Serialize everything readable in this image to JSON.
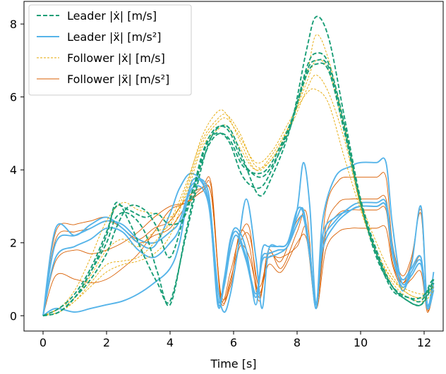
{
  "chart_data": {
    "type": "line",
    "xlabel": "Time [s]",
    "ylabel": "",
    "xlim": [
      -0.6,
      12.6
    ],
    "ylim": [
      -0.42,
      8.62
    ],
    "xticks": [
      0,
      2,
      4,
      6,
      8,
      10,
      12
    ],
    "yticks": [
      0,
      2,
      4,
      6,
      8
    ],
    "grid": false,
    "legend_position": "top-left",
    "legend": [
      {
        "label": "Leader |ẋ| [m/s]",
        "color": "#1a9e77",
        "style": "dashed",
        "width": 1.9
      },
      {
        "label": "Leader |ẍ| [m/s²]",
        "color": "#56b4e9",
        "style": "solid",
        "width": 1.9
      },
      {
        "label": "Follower |ẋ| [m/s]",
        "color": "#e6a700",
        "style": "dashed-thin",
        "width": 0.9
      },
      {
        "label": "Follower |ẍ| [m/s²]",
        "color": "#d95f02",
        "style": "solid-thin",
        "width": 0.9
      }
    ],
    "series": [
      {
        "group": "leader_vel",
        "x": [
          0,
          0.5,
          1,
          1.5,
          2,
          2.3,
          2.7,
          3.2,
          3.6,
          4,
          4.5,
          5,
          5.3,
          5.6,
          5.9,
          6.3,
          6.8,
          7.2,
          7.8,
          8.3,
          8.6,
          9,
          9.5,
          10,
          10.5,
          11,
          11.5,
          11.9,
          12.2,
          12.3
        ],
        "y": [
          0,
          0.1,
          0.5,
          1.2,
          2.2,
          3.1,
          2.6,
          1.6,
          0.9,
          0.4,
          2.2,
          4.1,
          4.9,
          5.2,
          5.1,
          4.3,
          3.3,
          3.8,
          5.2,
          7.3,
          8.2,
          7.6,
          5.4,
          3.2,
          1.8,
          0.8,
          0.4,
          0.3,
          0.8,
          1.0
        ]
      },
      {
        "group": "leader_vel",
        "x": [
          0,
          0.5,
          1,
          1.5,
          2,
          2.3,
          2.7,
          3.2,
          3.6,
          4,
          4.5,
          5,
          5.3,
          5.6,
          5.9,
          6.3,
          6.8,
          7.2,
          7.8,
          8.3,
          8.6,
          9,
          9.5,
          10,
          10.5,
          11,
          11.5,
          11.9,
          12.2,
          12.3
        ],
        "y": [
          0,
          0.2,
          0.6,
          1.3,
          2.3,
          3.0,
          2.9,
          2.7,
          2.8,
          2.5,
          2.8,
          4.4,
          5.0,
          5.2,
          5.0,
          4.2,
          3.8,
          4.1,
          5.2,
          6.8,
          7.2,
          6.9,
          5.2,
          3.1,
          1.7,
          0.7,
          0.5,
          0.4,
          0.9,
          1.0
        ]
      },
      {
        "group": "leader_vel",
        "x": [
          0,
          0.5,
          1,
          1.5,
          2,
          2.3,
          2.7,
          3.2,
          3.6,
          4,
          4.5,
          5,
          5.3,
          5.6,
          5.9,
          6.3,
          6.8,
          7.2,
          7.8,
          8.3,
          8.6,
          9,
          9.5,
          10,
          10.5,
          11,
          11.5,
          11.9,
          12.2,
          12.3
        ],
        "y": [
          0,
          0.1,
          0.5,
          1.0,
          1.7,
          2.4,
          3.0,
          2.9,
          2.4,
          1.6,
          2.9,
          4.2,
          4.8,
          5.0,
          4.8,
          4.1,
          3.9,
          4.2,
          5.3,
          6.6,
          6.9,
          6.7,
          5.0,
          3.1,
          1.6,
          0.8,
          0.5,
          0.5,
          0.8,
          1.0
        ]
      },
      {
        "group": "leader_vel",
        "x": [
          0,
          0.5,
          1,
          1.5,
          2,
          2.3,
          2.7,
          3.2,
          3.6,
          4,
          4.5,
          5,
          5.3,
          5.6,
          5.9,
          6.3,
          6.8,
          7.2,
          7.8,
          8.3,
          8.6,
          9,
          9.5,
          10,
          10.5,
          11,
          11.5,
          11.9,
          12.2,
          12.3
        ],
        "y": [
          0,
          0.1,
          0.5,
          1.2,
          2.0,
          2.7,
          2.8,
          2.3,
          1.2,
          0.3,
          2.3,
          4.3,
          4.9,
          5.0,
          4.7,
          3.8,
          3.5,
          4.0,
          5.3,
          6.7,
          7.0,
          6.8,
          5.1,
          3.1,
          1.7,
          0.8,
          0.4,
          0.3,
          0.7,
          0.9
        ]
      },
      {
        "group": "leader_acc",
        "x": [
          0,
          0.4,
          1,
          1.5,
          2,
          2.5,
          3,
          3.5,
          4,
          4.3,
          4.7,
          5.2,
          5.5,
          5.7,
          5.9,
          6.1,
          6.4,
          6.7,
          6.9,
          7.1,
          7.4,
          7.7,
          8,
          8.2,
          8.4,
          8.6,
          8.8,
          9.2,
          9.7,
          10,
          10.5,
          10.8,
          11,
          11.3,
          11.6,
          11.9,
          12.1,
          12.3
        ],
        "y": [
          0,
          0.2,
          0.1,
          0.2,
          0.3,
          0.4,
          0.6,
          0.9,
          1.3,
          2.0,
          3.7,
          3.2,
          0.8,
          0.1,
          0.6,
          1.6,
          3.2,
          1.6,
          0.2,
          1.8,
          1.9,
          2.0,
          2.9,
          4.2,
          3.0,
          0.3,
          2.6,
          3.8,
          4.1,
          4.2,
          4.2,
          4.2,
          2.5,
          0.9,
          1.4,
          3.0,
          0.3,
          1.2
        ]
      },
      {
        "group": "leader_acc",
        "x": [
          0,
          0.4,
          1,
          1.5,
          2,
          2.5,
          3,
          3.5,
          4,
          4.3,
          4.7,
          5.2,
          5.5,
          5.7,
          5.9,
          6.1,
          6.4,
          6.7,
          6.9,
          7.1,
          7.4,
          7.7,
          8,
          8.2,
          8.4,
          8.6,
          8.8,
          9.2,
          9.7,
          10,
          10.5,
          10.8,
          11,
          11.3,
          11.6,
          11.9,
          12.1,
          12.3
        ],
        "y": [
          0,
          2.4,
          2.2,
          2.5,
          2.7,
          2.4,
          2.0,
          1.9,
          2.8,
          3.5,
          3.9,
          3.2,
          0.3,
          1.0,
          2.1,
          2.4,
          1.8,
          0.3,
          1.8,
          1.9,
          1.9,
          2.0,
          2.9,
          2.8,
          1.8,
          0.2,
          2.2,
          2.7,
          2.9,
          3.0,
          3.0,
          3.0,
          1.8,
          1.0,
          1.3,
          1.6,
          0.2,
          0.9
        ]
      },
      {
        "group": "leader_acc",
        "x": [
          0,
          0.4,
          1,
          1.5,
          2,
          2.5,
          3,
          3.5,
          4,
          4.3,
          4.7,
          5.2,
          5.5,
          5.7,
          5.9,
          6.1,
          6.4,
          6.7,
          6.9,
          7.1,
          7.4,
          7.7,
          8,
          8.2,
          8.4,
          8.6,
          8.8,
          9.2,
          9.7,
          10,
          10.5,
          10.8,
          11,
          11.3,
          11.6,
          11.9,
          12.1,
          12.3
        ],
        "y": [
          0,
          2.0,
          2.2,
          2.4,
          2.6,
          2.5,
          2.1,
          2.0,
          2.3,
          2.6,
          3.6,
          3.4,
          0.5,
          0.9,
          2.0,
          2.3,
          1.6,
          0.6,
          1.6,
          1.7,
          1.8,
          1.9,
          2.7,
          2.9,
          1.7,
          0.3,
          2.0,
          2.6,
          3.0,
          3.1,
          3.1,
          3.1,
          1.9,
          0.7,
          1.2,
          1.5,
          0.3,
          0.8
        ]
      },
      {
        "group": "leader_acc",
        "x": [
          0,
          0.4,
          1,
          1.5,
          2,
          2.5,
          3,
          3.5,
          4,
          4.3,
          4.7,
          5.2,
          5.5,
          5.7,
          5.9,
          6.1,
          6.4,
          6.7,
          6.9,
          7.1,
          7.4,
          7.7,
          8,
          8.2,
          8.4,
          8.6,
          8.8,
          9.2,
          9.7,
          10,
          10.5,
          10.8,
          11,
          11.3,
          11.6,
          11.9,
          12.1,
          12.3
        ],
        "y": [
          0,
          1.6,
          1.9,
          2.1,
          2.4,
          2.3,
          1.8,
          1.6,
          2.0,
          2.4,
          3.5,
          3.1,
          0.4,
          0.8,
          1.8,
          2.2,
          1.5,
          0.5,
          1.5,
          1.6,
          1.7,
          1.9,
          2.5,
          2.7,
          1.6,
          0.2,
          1.8,
          2.5,
          2.9,
          3.0,
          3.0,
          3.0,
          1.7,
          0.8,
          1.1,
          1.4,
          0.2,
          0.7
        ]
      },
      {
        "group": "follower_vel",
        "x": [
          0,
          0.5,
          1,
          1.5,
          2,
          2.5,
          3,
          3.5,
          4,
          4.5,
          5,
          5.5,
          5.8,
          6.2,
          6.7,
          7.2,
          7.8,
          8.3,
          8.6,
          9,
          9.5,
          10,
          10.5,
          11,
          11.5,
          12,
          12.3
        ],
        "y": [
          0,
          0.1,
          0.4,
          0.9,
          1.4,
          1.5,
          1.6,
          2.0,
          2.6,
          3.6,
          4.8,
          5.4,
          5.5,
          5.0,
          4.1,
          4.3,
          5.3,
          6.6,
          7.7,
          7.0,
          5.2,
          3.2,
          2.0,
          1.1,
          0.6,
          0.5,
          0.8
        ]
      },
      {
        "group": "follower_vel",
        "x": [
          0,
          0.5,
          1,
          1.5,
          2,
          2.5,
          3,
          3.5,
          4,
          4.5,
          5,
          5.5,
          5.8,
          6.2,
          6.7,
          7.2,
          7.8,
          8.3,
          8.6,
          9,
          9.5,
          10,
          10.5,
          11,
          11.5,
          12,
          12.3
        ],
        "y": [
          0,
          0.2,
          0.5,
          1.1,
          1.8,
          2.1,
          1.9,
          2.3,
          2.5,
          3.5,
          4.9,
          5.6,
          5.5,
          4.8,
          4.0,
          4.3,
          5.2,
          6.2,
          6.6,
          6.1,
          4.8,
          3.0,
          1.8,
          1.0,
          0.7,
          0.6,
          0.8
        ]
      },
      {
        "group": "follower_vel",
        "x": [
          0,
          0.5,
          1,
          1.5,
          2,
          2.5,
          3,
          3.5,
          4,
          4.5,
          5,
          5.5,
          5.8,
          6.2,
          6.7,
          7.2,
          7.8,
          8.3,
          8.6,
          9,
          9.5,
          10,
          10.5,
          11,
          11.5,
          12,
          12.3
        ],
        "y": [
          0,
          0.1,
          0.4,
          0.8,
          1.2,
          1.4,
          1.5,
          1.7,
          2.2,
          3.4,
          4.7,
          5.3,
          5.4,
          4.9,
          4.2,
          4.5,
          5.4,
          6.1,
          6.2,
          5.8,
          4.3,
          2.9,
          1.7,
          1.0,
          0.6,
          0.5,
          0.9
        ]
      },
      {
        "group": "follower_vel",
        "x": [
          0,
          0.5,
          1,
          1.5,
          2,
          2.5,
          3,
          3.5,
          4,
          4.5,
          5,
          5.5,
          5.8,
          6.2,
          6.7,
          7.2,
          7.8,
          8.3,
          8.6,
          9,
          9.5,
          10,
          10.5,
          11,
          11.5,
          12,
          12.3
        ],
        "y": [
          0,
          0.2,
          0.7,
          1.6,
          2.6,
          3.1,
          2.9,
          2.8,
          2.7,
          3.3,
          4.6,
          5.1,
          5.2,
          4.6,
          4.0,
          4.4,
          5.3,
          6.4,
          7.0,
          6.7,
          5.0,
          3.0,
          1.7,
          0.9,
          0.5,
          0.4,
          0.7
        ]
      },
      {
        "group": "follower_acc",
        "x": [
          0,
          0.4,
          1,
          1.5,
          2,
          2.5,
          3,
          3.5,
          4,
          4.5,
          5,
          5.3,
          5.6,
          5.9,
          6.2,
          6.5,
          6.8,
          7.1,
          7.5,
          8,
          8.3,
          8.6,
          8.9,
          9.3,
          9.7,
          10,
          10.5,
          10.8,
          11,
          11.3,
          11.6,
          11.9,
          12.1,
          12.3
        ],
        "y": [
          0,
          1.1,
          1.0,
          0.9,
          1.0,
          1.3,
          1.7,
          2.3,
          2.9,
          3.1,
          3.5,
          3.6,
          0.5,
          1.2,
          2.2,
          2.4,
          0.5,
          1.8,
          1.3,
          2.3,
          2.8,
          0.3,
          2.4,
          3.1,
          3.2,
          3.2,
          3.2,
          3.2,
          1.8,
          0.9,
          1.5,
          2.9,
          0.2,
          0.9
        ]
      },
      {
        "group": "follower_acc",
        "x": [
          0,
          0.4,
          1,
          1.5,
          2,
          2.5,
          3,
          3.5,
          4,
          4.5,
          5,
          5.3,
          5.6,
          5.9,
          6.2,
          6.5,
          6.8,
          7.1,
          7.5,
          8,
          8.3,
          8.6,
          8.9,
          9.3,
          9.7,
          10,
          10.5,
          10.8,
          11,
          11.3,
          11.6,
          11.9,
          12.1,
          12.3
        ],
        "y": [
          0,
          1.5,
          1.8,
          1.7,
          1.8,
          2.0,
          2.3,
          2.7,
          3.0,
          3.1,
          3.4,
          3.5,
          0.4,
          1.0,
          2.0,
          2.2,
          0.8,
          1.6,
          1.6,
          1.9,
          2.4,
          0.3,
          2.2,
          2.8,
          2.9,
          2.9,
          2.9,
          2.9,
          1.5,
          0.9,
          1.2,
          1.6,
          0.3,
          0.8
        ]
      },
      {
        "group": "follower_acc",
        "x": [
          0,
          0.4,
          1,
          1.5,
          2,
          2.5,
          3,
          3.5,
          4,
          4.5,
          5,
          5.3,
          5.6,
          5.9,
          6.2,
          6.5,
          6.8,
          7.1,
          7.5,
          8,
          8.3,
          8.6,
          8.9,
          9.3,
          9.7,
          10,
          10.5,
          10.8,
          11,
          11.3,
          11.6,
          11.9,
          12.1,
          12.3
        ],
        "y": [
          0,
          2.3,
          2.5,
          2.6,
          2.7,
          2.4,
          2.1,
          2.4,
          2.6,
          3.2,
          3.5,
          3.3,
          0.6,
          0.9,
          2.3,
          1.9,
          0.4,
          1.7,
          1.5,
          2.6,
          2.5,
          0.2,
          2.9,
          3.7,
          3.8,
          3.8,
          3.8,
          3.8,
          2.0,
          1.1,
          1.6,
          2.8,
          0.2,
          0.9
        ]
      },
      {
        "group": "follower_acc",
        "x": [
          0,
          0.4,
          1,
          1.5,
          2,
          2.5,
          3,
          3.5,
          4,
          4.5,
          5,
          5.3,
          5.6,
          5.9,
          6.2,
          6.5,
          6.8,
          7.1,
          7.5,
          8,
          8.3,
          8.6,
          8.9,
          9.3,
          9.7,
          10,
          10.5,
          10.8,
          11,
          11.3,
          11.6,
          11.9,
          12.1,
          12.3
        ],
        "y": [
          0,
          2.1,
          2.3,
          2.4,
          2.6,
          2.4,
          2.0,
          2.2,
          2.4,
          3.0,
          3.4,
          3.3,
          0.5,
          0.8,
          1.9,
          1.6,
          0.6,
          1.4,
          1.2,
          2.0,
          2.1,
          0.2,
          1.8,
          2.3,
          2.4,
          2.4,
          2.4,
          2.4,
          1.4,
          0.8,
          1.0,
          1.2,
          0.1,
          0.7
        ]
      }
    ]
  }
}
